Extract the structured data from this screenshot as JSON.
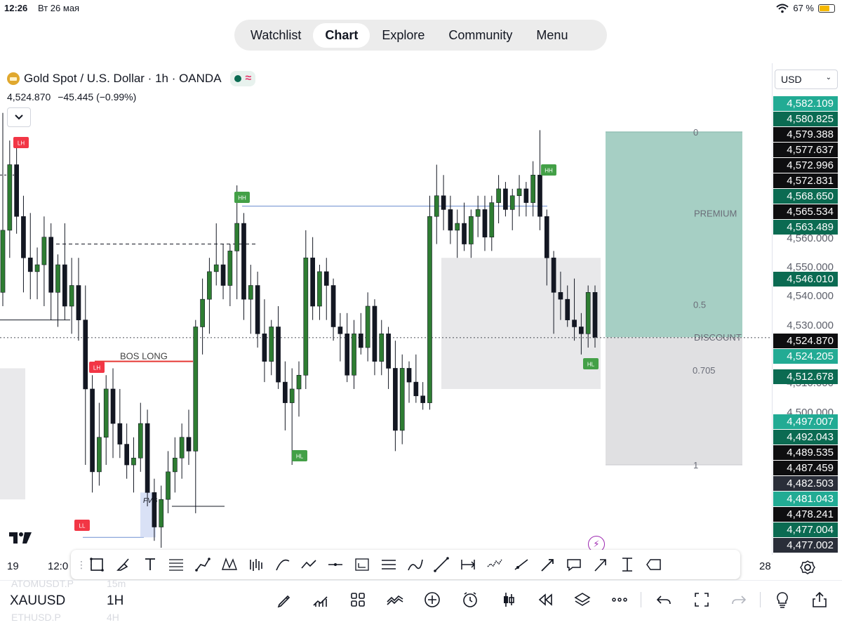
{
  "status_bar": {
    "time": "12:26",
    "date": "Вт 26 мая",
    "battery": "67 %"
  },
  "top_nav": {
    "tabs": [
      "Watchlist",
      "Chart",
      "Explore",
      "Community",
      "Menu"
    ],
    "active": "Chart"
  },
  "symbol_header": {
    "title": "Gold Spot / U.S. Dollar · 1h · OANDA",
    "last_price": "4,524.870",
    "change": "−45.445 (−0.99%)"
  },
  "currency": "USD",
  "chart_data": {
    "type": "candlestick",
    "symbol": "XAUUSD",
    "interval": "1H",
    "y_range": [
      4464,
      4604
    ],
    "x_labels": [
      "19",
      "12:0",
      "28"
    ],
    "axis_ticks": [
      "4,560.000",
      "4,550.000",
      "4,540.000",
      "4,530.000",
      "4,510.000",
      "4,500.000"
    ],
    "last_price": 4524.87,
    "annotations": [
      "LH",
      "BOS LONG",
      "LH",
      "LL",
      "HH",
      "HL",
      "HH",
      "HL",
      "FVG"
    ],
    "fib_levels": [
      {
        "label": "0",
        "price": 4584.5
      },
      {
        "label": "PREMIUM",
        "price": 4561.0
      },
      {
        "label": "0.5",
        "price": 4534.5
      },
      {
        "label": "DISCOUNT",
        "price": 4525.0
      },
      {
        "label": "0.705",
        "price": 4515.5
      },
      {
        "label": "1",
        "price": 4488.0
      }
    ],
    "candles": [
      {
        "o": 4538,
        "h": 4590,
        "l": 4534,
        "c": 4556
      },
      {
        "o": 4556,
        "h": 4582,
        "l": 4548,
        "c": 4575
      },
      {
        "o": 4575,
        "h": 4581,
        "l": 4555,
        "c": 4560
      },
      {
        "o": 4560,
        "h": 4566,
        "l": 4538,
        "c": 4548
      },
      {
        "o": 4548,
        "h": 4561,
        "l": 4536,
        "c": 4544
      },
      {
        "o": 4544,
        "h": 4551,
        "l": 4536,
        "c": 4546
      },
      {
        "o": 4546,
        "h": 4560,
        "l": 4534,
        "c": 4554
      },
      {
        "o": 4554,
        "h": 4558,
        "l": 4530,
        "c": 4538
      },
      {
        "o": 4538,
        "h": 4549,
        "l": 4528,
        "c": 4546
      },
      {
        "o": 4546,
        "h": 4558,
        "l": 4530,
        "c": 4534
      },
      {
        "o": 4534,
        "h": 4548,
        "l": 4526,
        "c": 4540
      },
      {
        "o": 4540,
        "h": 4548,
        "l": 4524,
        "c": 4530
      },
      {
        "o": 4530,
        "h": 4540,
        "l": 4488,
        "c": 4510
      },
      {
        "o": 4510,
        "h": 4514,
        "l": 4480,
        "c": 4486
      },
      {
        "o": 4486,
        "h": 4506,
        "l": 4482,
        "c": 4496
      },
      {
        "o": 4496,
        "h": 4514,
        "l": 4488,
        "c": 4510
      },
      {
        "o": 4510,
        "h": 4516,
        "l": 4490,
        "c": 4500
      },
      {
        "o": 4500,
        "h": 4510,
        "l": 4490,
        "c": 4494
      },
      {
        "o": 4494,
        "h": 4500,
        "l": 4484,
        "c": 4488
      },
      {
        "o": 4488,
        "h": 4496,
        "l": 4480,
        "c": 4490
      },
      {
        "o": 4490,
        "h": 4506,
        "l": 4486,
        "c": 4500
      },
      {
        "o": 4500,
        "h": 4504,
        "l": 4476,
        "c": 4480
      },
      {
        "o": 4480,
        "h": 4484,
        "l": 4466,
        "c": 4470
      },
      {
        "o": 4470,
        "h": 4482,
        "l": 4464,
        "c": 4478
      },
      {
        "o": 4478,
        "h": 4492,
        "l": 4474,
        "c": 4486
      },
      {
        "o": 4486,
        "h": 4496,
        "l": 4480,
        "c": 4490
      },
      {
        "o": 4490,
        "h": 4500,
        "l": 4484,
        "c": 4496
      },
      {
        "o": 4496,
        "h": 4504,
        "l": 4488,
        "c": 4492
      },
      {
        "o": 4492,
        "h": 4530,
        "l": 4474,
        "c": 4528
      },
      {
        "o": 4528,
        "h": 4542,
        "l": 4520,
        "c": 4536
      },
      {
        "o": 4536,
        "h": 4548,
        "l": 4526,
        "c": 4544
      },
      {
        "o": 4544,
        "h": 4558,
        "l": 4540,
        "c": 4546
      },
      {
        "o": 4546,
        "h": 4552,
        "l": 4536,
        "c": 4540
      },
      {
        "o": 4540,
        "h": 4552,
        "l": 4534,
        "c": 4550
      },
      {
        "o": 4550,
        "h": 4569,
        "l": 4536,
        "c": 4558
      },
      {
        "o": 4558,
        "h": 4561,
        "l": 4530,
        "c": 4536
      },
      {
        "o": 4536,
        "h": 4546,
        "l": 4526,
        "c": 4540
      },
      {
        "o": 4540,
        "h": 4544,
        "l": 4522,
        "c": 4526
      },
      {
        "o": 4526,
        "h": 4536,
        "l": 4512,
        "c": 4518
      },
      {
        "o": 4518,
        "h": 4530,
        "l": 4514,
        "c": 4528
      },
      {
        "o": 4528,
        "h": 4534,
        "l": 4510,
        "c": 4512
      },
      {
        "o": 4512,
        "h": 4518,
        "l": 4498,
        "c": 4506
      },
      {
        "o": 4506,
        "h": 4516,
        "l": 4488,
        "c": 4510
      },
      {
        "o": 4510,
        "h": 4518,
        "l": 4502,
        "c": 4514
      },
      {
        "o": 4514,
        "h": 4556,
        "l": 4510,
        "c": 4548
      },
      {
        "o": 4548,
        "h": 4554,
        "l": 4530,
        "c": 4534
      },
      {
        "o": 4534,
        "h": 4546,
        "l": 4530,
        "c": 4544
      },
      {
        "o": 4544,
        "h": 4548,
        "l": 4530,
        "c": 4540
      },
      {
        "o": 4540,
        "h": 4542,
        "l": 4524,
        "c": 4528
      },
      {
        "o": 4528,
        "h": 4532,
        "l": 4518,
        "c": 4526
      },
      {
        "o": 4526,
        "h": 4532,
        "l": 4512,
        "c": 4514
      },
      {
        "o": 4514,
        "h": 4530,
        "l": 4510,
        "c": 4526
      },
      {
        "o": 4526,
        "h": 4532,
        "l": 4520,
        "c": 4522
      },
      {
        "o": 4522,
        "h": 4538,
        "l": 4518,
        "c": 4534
      },
      {
        "o": 4534,
        "h": 4536,
        "l": 4514,
        "c": 4518
      },
      {
        "o": 4518,
        "h": 4530,
        "l": 4514,
        "c": 4526
      },
      {
        "o": 4526,
        "h": 4528,
        "l": 4510,
        "c": 4516
      },
      {
        "o": 4516,
        "h": 4524,
        "l": 4492,
        "c": 4498
      },
      {
        "o": 4498,
        "h": 4520,
        "l": 4494,
        "c": 4516
      },
      {
        "o": 4516,
        "h": 4518,
        "l": 4506,
        "c": 4512
      },
      {
        "o": 4512,
        "h": 4520,
        "l": 4506,
        "c": 4508
      },
      {
        "o": 4508,
        "h": 4512,
        "l": 4504,
        "c": 4506
      },
      {
        "o": 4506,
        "h": 4566,
        "l": 4504,
        "c": 4560
      },
      {
        "o": 4560,
        "h": 4575,
        "l": 4552,
        "c": 4566
      },
      {
        "o": 4566,
        "h": 4572,
        "l": 4556,
        "c": 4562
      },
      {
        "o": 4562,
        "h": 4566,
        "l": 4552,
        "c": 4556
      },
      {
        "o": 4556,
        "h": 4562,
        "l": 4548,
        "c": 4558
      },
      {
        "o": 4558,
        "h": 4564,
        "l": 4550,
        "c": 4552
      },
      {
        "o": 4552,
        "h": 4562,
        "l": 4548,
        "c": 4560
      },
      {
        "o": 4560,
        "h": 4566,
        "l": 4554,
        "c": 4562
      },
      {
        "o": 4562,
        "h": 4566,
        "l": 4550,
        "c": 4554
      },
      {
        "o": 4554,
        "h": 4566,
        "l": 4550,
        "c": 4564
      },
      {
        "o": 4564,
        "h": 4572,
        "l": 4558,
        "c": 4568
      },
      {
        "o": 4568,
        "h": 4570,
        "l": 4560,
        "c": 4562
      },
      {
        "o": 4562,
        "h": 4568,
        "l": 4556,
        "c": 4566
      },
      {
        "o": 4566,
        "h": 4572,
        "l": 4560,
        "c": 4568
      },
      {
        "o": 4568,
        "h": 4570,
        "l": 4560,
        "c": 4564
      },
      {
        "o": 4564,
        "h": 4576,
        "l": 4560,
        "c": 4572
      },
      {
        "o": 4572,
        "h": 4585,
        "l": 4556,
        "c": 4560
      },
      {
        "o": 4560,
        "h": 4562,
        "l": 4540,
        "c": 4548
      },
      {
        "o": 4548,
        "h": 4550,
        "l": 4526,
        "c": 4538
      },
      {
        "o": 4538,
        "h": 4544,
        "l": 4530,
        "c": 4536
      },
      {
        "o": 4536,
        "h": 4540,
        "l": 4528,
        "c": 4530
      },
      {
        "o": 4530,
        "h": 4542,
        "l": 4524,
        "c": 4528
      },
      {
        "o": 4528,
        "h": 4532,
        "l": 4520,
        "c": 4526
      },
      {
        "o": 4526,
        "h": 4540,
        "l": 4522,
        "c": 4538
      },
      {
        "o": 4538,
        "h": 4540,
        "l": 4522,
        "c": 4525
      }
    ]
  },
  "price_labels": [
    {
      "text": "4,582.109",
      "color": "#22ab94"
    },
    {
      "text": "4,580.825",
      "color": "#0b6b52"
    },
    {
      "text": "4,579.388",
      "color": "#0e0e10"
    },
    {
      "text": "4,577.637",
      "color": "#0e0e10"
    },
    {
      "text": "4,572.996",
      "color": "#0e0e10"
    },
    {
      "text": "4,572.831",
      "color": "#0e0e10"
    },
    {
      "text": "4,568.650",
      "color": "#0b6b52"
    },
    {
      "text": "4,565.534",
      "color": "#0e0e10"
    },
    {
      "text": "4,563.489",
      "color": "#0b6b52"
    },
    {
      "text": "4,546.010",
      "color": "#0b6b52"
    },
    {
      "text": "4,524.870",
      "color": "#0e0e10"
    },
    {
      "text": "4,524.205",
      "color": "#22ab94"
    },
    {
      "text": "4,512.678",
      "color": "#0b6b52"
    },
    {
      "text": "4,497.007",
      "color": "#22ab94"
    },
    {
      "text": "4,492.043",
      "color": "#0b6b52"
    },
    {
      "text": "4,489.535",
      "color": "#0e0e10"
    },
    {
      "text": "4,487.459",
      "color": "#0e0e10"
    },
    {
      "text": "4,482.503",
      "color": "#2a2e39"
    },
    {
      "text": "4,481.043",
      "color": "#22ab94"
    },
    {
      "text": "4,478.241",
      "color": "#0e0e10"
    },
    {
      "text": "4,477.004",
      "color": "#0b6b52"
    },
    {
      "text": "4,477.002",
      "color": "#2a2e39"
    }
  ],
  "drawing_tools": [
    "rectangle",
    "brush",
    "text",
    "fib-retracement",
    "path",
    "xabcd-pattern",
    "bars-pattern",
    "arc",
    "polyline",
    "horizontal-line",
    "long-position",
    "parallel-channel",
    "curve",
    "trend-line",
    "date-range",
    "forecast",
    "ray",
    "arrow-marker",
    "callout",
    "arrow",
    "price-range",
    "callout-shape"
  ],
  "bottom_bar": {
    "symbol": "XAUUSD",
    "interval": "1H",
    "ghost_rows": [
      {
        "symbol": "ATOMUSDT.P",
        "interval": "15m"
      },
      {
        "symbol": "ETHUSD.P",
        "interval": "4H"
      }
    ],
    "buttons": [
      "pen",
      "indicators",
      "templates",
      "compare",
      "add",
      "alert",
      "chart-type",
      "replay",
      "layers",
      "more",
      "undo",
      "fullscreen",
      "redo",
      "ideas",
      "share"
    ]
  }
}
